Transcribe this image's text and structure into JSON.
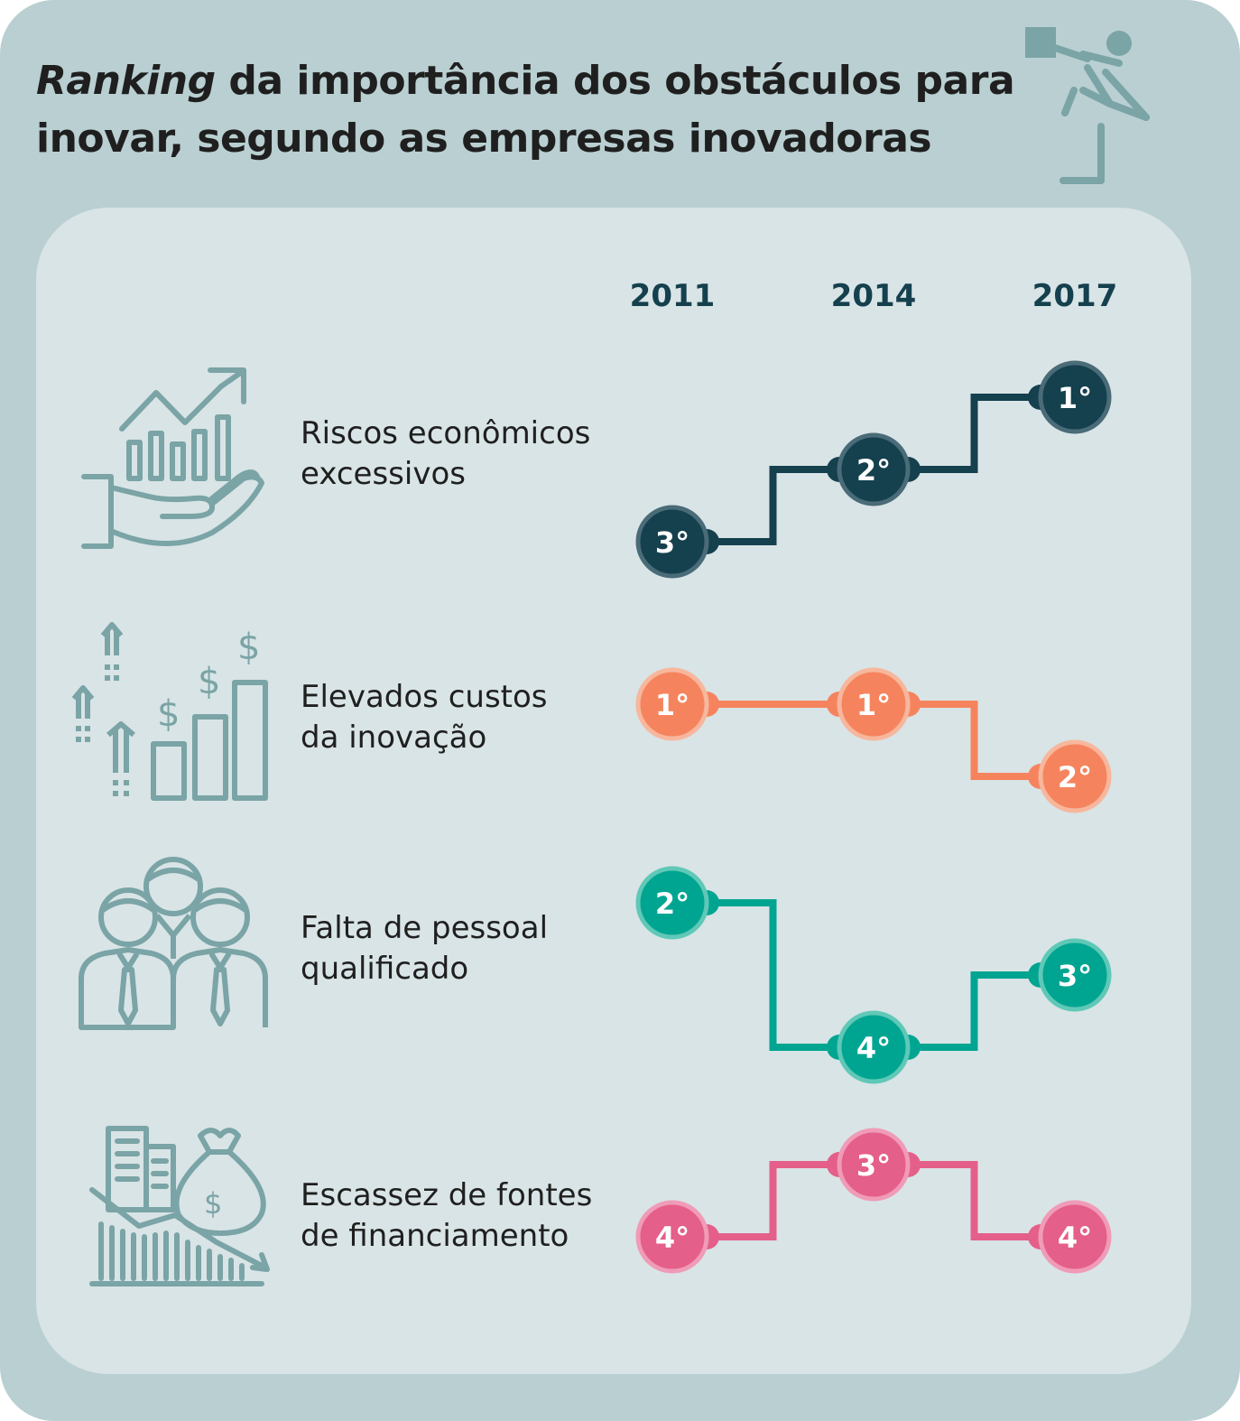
{
  "title": {
    "italic": "Ranking",
    "rest_line1": " da importância dos obstáculos para",
    "line2": "inovar, segundo as empresas inovadoras"
  },
  "years": [
    "2011",
    "2014",
    "2017"
  ],
  "chart_data": {
    "type": "line",
    "title": "Ranking da importância dos obstáculos para inovar, segundo as empresas inovadoras",
    "x": [
      "2011",
      "2014",
      "2017"
    ],
    "rank_suffix": "°",
    "series": [
      {
        "name": "Riscos econômicos excessivos",
        "label_lines": [
          "Riscos econômicos",
          "excessivos"
        ],
        "icon": "hand-growth-chart-icon",
        "color": "#15404e",
        "ring": "#4a6b78",
        "values": [
          3,
          2,
          1
        ]
      },
      {
        "name": "Elevados custos da inovação",
        "label_lines": [
          "Elevados custos",
          "da inovação"
        ],
        "icon": "rising-costs-bars-icon",
        "color": "#f5845e",
        "ring": "#f7b79d",
        "values": [
          1,
          1,
          2
        ]
      },
      {
        "name": "Falta de pessoal qualificado",
        "label_lines": [
          "Falta de pessoal",
          "qualificado"
        ],
        "icon": "business-people-group-icon",
        "color": "#00a591",
        "ring": "#60c8b7",
        "values": [
          2,
          4,
          3
        ]
      },
      {
        "name": "Escassez de fontes de financiamento",
        "label_lines": [
          "Escassez de fontes",
          "de financiamento"
        ],
        "icon": "money-bag-buildings-icon",
        "color": "#e45f8a",
        "ring": "#f09bb7",
        "values": [
          4,
          3,
          4
        ]
      }
    ]
  }
}
